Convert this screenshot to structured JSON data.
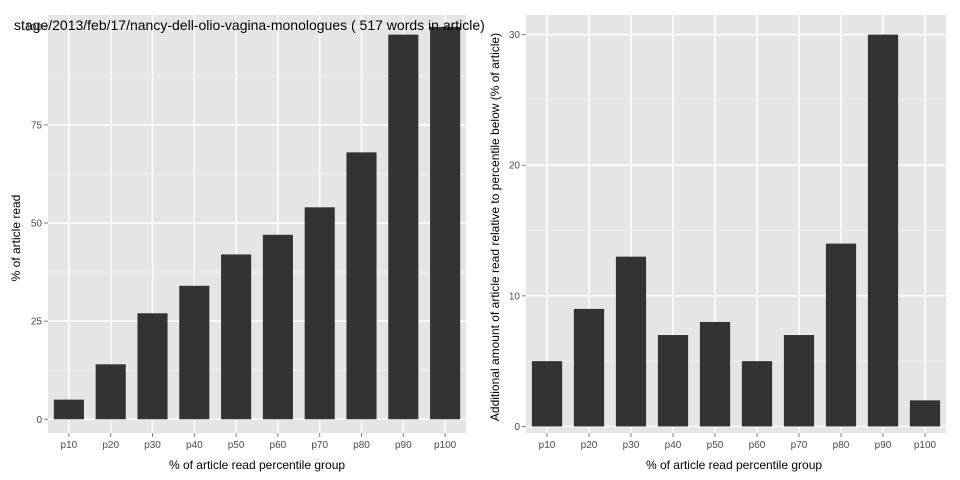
{
  "colors": {
    "panel_bg": "#e5e5e5",
    "grid_major": "#ffffff",
    "grid_minor": "#f2f2f2",
    "bar": "#333333",
    "tick": "#7f7f7f"
  },
  "chart_data": [
    {
      "type": "bar",
      "title": "stage/2013/feb/17/nancy-dell-olio-vagina-monologues ( 517 words in article)",
      "xlabel": "% of article read percentile group",
      "ylabel": "% of article read",
      "categories": [
        "p10",
        "p20",
        "p30",
        "p40",
        "p50",
        "p60",
        "p70",
        "p80",
        "p90",
        "p100"
      ],
      "values": [
        5,
        14,
        27,
        34,
        42,
        47,
        54,
        68,
        98,
        100
      ],
      "ylim": [
        -3.5,
        103
      ],
      "yticks": [
        0,
        25,
        50,
        75,
        100
      ],
      "ytick_labels": [
        "0",
        "25",
        "50",
        "75",
        "100"
      ],
      "grid": true
    },
    {
      "type": "bar",
      "title": "",
      "xlabel": "% of article read percentile group",
      "ylabel": "Additional amount of article read relative to percentile below (% of article)",
      "categories": [
        "p10",
        "p20",
        "p30",
        "p40",
        "p50",
        "p60",
        "p70",
        "p80",
        "p90",
        "p100"
      ],
      "values": [
        5,
        9,
        13,
        7,
        8,
        5,
        7,
        14,
        30,
        2
      ],
      "ylim": [
        -0.5,
        31.5
      ],
      "yticks": [
        0,
        10,
        20,
        30
      ],
      "ytick_labels": [
        "0",
        "10",
        "20",
        "30"
      ],
      "grid": true
    }
  ]
}
